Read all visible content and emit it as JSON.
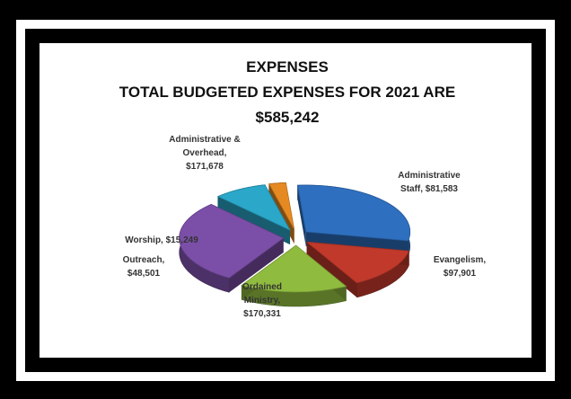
{
  "chart_data": {
    "type": "pie",
    "title_lines": [
      "EXPENSES",
      "TOTAL BUDGETED EXPENSES FOR 2021 ARE",
      "$585,242"
    ],
    "slices": [
      {
        "name": "Administrative & Overhead",
        "value": 171678,
        "label_lines": [
          "Administrative &",
          "Overhead,",
          "$171,678"
        ],
        "color": "#2e6fbf",
        "exploded": true
      },
      {
        "name": "Administrative Staff",
        "value": 81583,
        "label_lines": [
          "Administrative",
          "Staff, $81,583"
        ],
        "color": "#c0392b",
        "exploded": true
      },
      {
        "name": "Evangelism",
        "value": 97901,
        "label_lines": [
          "Evangelism,",
          "$97,901"
        ],
        "color": "#8fbb3f",
        "exploded": true
      },
      {
        "name": "Ordained Ministry",
        "value": 170331,
        "label_lines": [
          "Ordained",
          "Ministry,",
          "$170,331"
        ],
        "color": "#7b4fa8",
        "exploded": true
      },
      {
        "name": "Outreach",
        "value": 48501,
        "label_lines": [
          "Outreach,",
          "$48,501"
        ],
        "color": "#2aa7c9",
        "exploded": true
      },
      {
        "name": "Worship",
        "value": 15249,
        "label_lines": [
          "Worship, $15,249"
        ],
        "color": "#e58a22",
        "exploded": true
      }
    ],
    "legend": "none",
    "style": "3d-exploded"
  }
}
